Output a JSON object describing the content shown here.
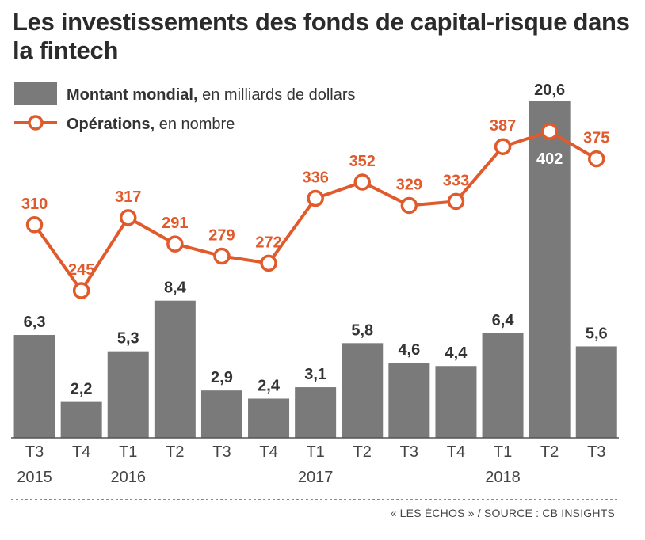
{
  "chart_data": {
    "type": "bar",
    "title": "Les investissements des fonds de capital-risque dans la fintech",
    "categories": [
      "T3",
      "T4",
      "T1",
      "T2",
      "T3",
      "T4",
      "T1",
      "T2",
      "T3",
      "T4",
      "T1",
      "T2",
      "T3"
    ],
    "year_labels": [
      "2015",
      "",
      "2016",
      "",
      "",
      "",
      "2017",
      "",
      "",
      "",
      "2018",
      "",
      ""
    ],
    "legend": {
      "bar_label_bold": "Montant mondial,",
      "bar_label_rest": " en milliards de dollars",
      "line_label_bold": "Opérations,",
      "line_label_rest": " en nombre"
    },
    "series": [
      {
        "name": "Montant mondial",
        "type": "bar",
        "color": "#7a7a7a",
        "values": [
          6.3,
          2.2,
          5.3,
          8.4,
          2.9,
          2.4,
          3.1,
          5.8,
          4.6,
          4.4,
          6.4,
          20.6,
          5.6
        ],
        "labels": [
          "6,3",
          "2,2",
          "5,3",
          "8,4",
          "2,9",
          "2,4",
          "3,1",
          "5,8",
          "4,6",
          "4,4",
          "6,4",
          "20,6",
          "5,6"
        ]
      },
      {
        "name": "Opérations",
        "type": "line",
        "color": "#e05a2b",
        "values": [
          310,
          245,
          317,
          291,
          279,
          272,
          336,
          352,
          329,
          333,
          387,
          402,
          375
        ]
      }
    ]
  },
  "source": "« LES ÉCHOS » / SOURCE : CB INSIGHTS"
}
